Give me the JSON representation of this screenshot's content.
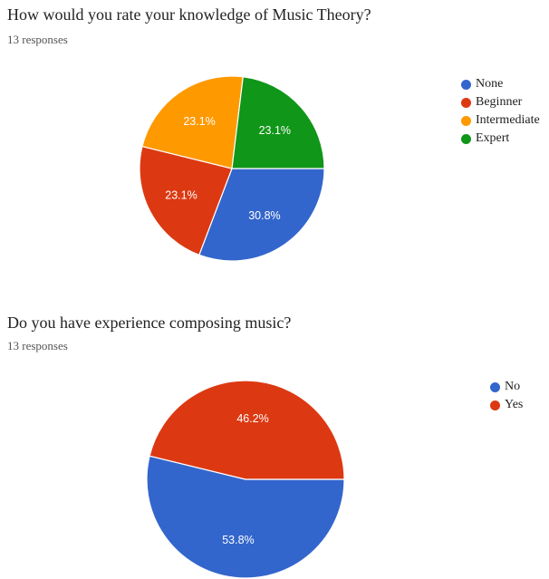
{
  "chart_data": [
    {
      "type": "pie",
      "title": "How would you rate your knowledge of Music Theory?",
      "subtitle": "13 responses",
      "legend_position": "right",
      "categories": [
        "None",
        "Beginner",
        "Intermediate",
        "Expert"
      ],
      "values": [
        30.8,
        23.1,
        23.1,
        23.1
      ],
      "labels": [
        "30.8%",
        "23.1%",
        "23.1%",
        "23.1%"
      ],
      "colors": [
        "#3366cc",
        "#dc3912",
        "#ff9900",
        "#109618"
      ]
    },
    {
      "type": "pie",
      "title": "Do you have experience composing music?",
      "subtitle": "13 responses",
      "legend_position": "right",
      "categories": [
        "No",
        "Yes"
      ],
      "values": [
        53.8,
        46.2
      ],
      "labels": [
        "53.8%",
        "46.2%"
      ],
      "colors": [
        "#3366cc",
        "#dc3912"
      ]
    }
  ]
}
